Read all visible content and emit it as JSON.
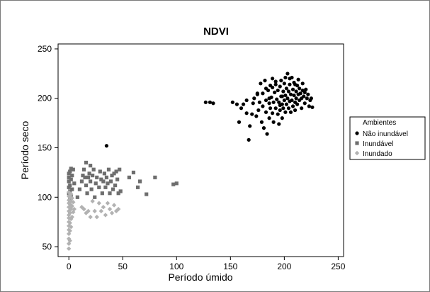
{
  "chart_data": {
    "type": "scatter",
    "title": "NDVI",
    "xlabel": "Período úmido",
    "ylabel": "Período seco",
    "xlim": [
      -10,
      255
    ],
    "ylim": [
      40,
      255
    ],
    "xticks": [
      0,
      50,
      100,
      150,
      200,
      250
    ],
    "yticks": [
      50,
      100,
      150,
      200,
      250
    ],
    "grid": false,
    "legend": {
      "title": "Ambientes",
      "placement": "right",
      "entries": [
        "Não inundável",
        "Inundável",
        "Inundado"
      ]
    },
    "series": [
      {
        "name": "Não inundável",
        "marker": "circle",
        "color": "#000000",
        "points": [
          [
            35,
            152
          ],
          [
            127,
            196
          ],
          [
            131,
            196
          ],
          [
            134,
            195
          ],
          [
            152,
            196
          ],
          [
            156,
            194
          ],
          [
            158,
            176
          ],
          [
            160,
            190
          ],
          [
            162,
            194
          ],
          [
            165,
            185
          ],
          [
            165,
            198
          ],
          [
            167,
            158
          ],
          [
            168,
            172
          ],
          [
            170,
            184
          ],
          [
            171,
            195
          ],
          [
            172,
            200
          ],
          [
            174,
            182
          ],
          [
            175,
            204
          ],
          [
            176,
            188
          ],
          [
            177,
            196
          ],
          [
            178,
            215
          ],
          [
            179,
            176
          ],
          [
            180,
            192
          ],
          [
            180,
            205
          ],
          [
            181,
            170
          ],
          [
            182,
            218
          ],
          [
            183,
            186
          ],
          [
            183,
            198
          ],
          [
            184,
            164
          ],
          [
            185,
            208
          ],
          [
            186,
            195
          ],
          [
            186,
            180
          ],
          [
            187,
            213
          ],
          [
            187,
            190
          ],
          [
            188,
            201
          ],
          [
            189,
            185
          ],
          [
            189,
            220
          ],
          [
            190,
            196
          ],
          [
            190,
            176
          ],
          [
            191,
            206
          ],
          [
            192,
            190
          ],
          [
            192,
            214
          ],
          [
            193,
            199
          ],
          [
            194,
            184
          ],
          [
            194,
            208
          ],
          [
            195,
            196
          ],
          [
            195,
            174
          ],
          [
            196,
            212
          ],
          [
            196,
            188
          ],
          [
            197,
            202
          ],
          [
            197,
            218
          ],
          [
            198,
            194
          ],
          [
            198,
            180
          ],
          [
            199,
            207
          ],
          [
            199,
            190
          ],
          [
            200,
            198
          ],
          [
            200,
            215
          ],
          [
            201,
            186
          ],
          [
            201,
            203
          ],
          [
            202,
            194
          ],
          [
            202,
            210
          ],
          [
            203,
            200
          ],
          [
            203,
            225
          ],
          [
            204,
            190
          ],
          [
            204,
            207
          ],
          [
            205,
            197
          ],
          [
            205,
            214
          ],
          [
            206,
            204
          ],
          [
            206,
            186
          ],
          [
            207,
            221
          ],
          [
            207,
            198
          ],
          [
            208,
            209
          ],
          [
            208,
            192
          ],
          [
            209,
            203
          ],
          [
            209,
            216
          ],
          [
            210,
            196
          ],
          [
            210,
            188
          ],
          [
            211,
            207
          ],
          [
            211,
            200
          ],
          [
            212,
            213
          ],
          [
            212,
            194
          ],
          [
            213,
            219
          ],
          [
            213,
            204
          ],
          [
            214,
            198
          ],
          [
            214,
            210
          ],
          [
            215,
            205
          ],
          [
            216,
            200
          ],
          [
            216,
            190
          ],
          [
            217,
            208
          ],
          [
            217,
            215
          ],
          [
            218,
            202
          ],
          [
            219,
            206
          ],
          [
            219,
            195
          ],
          [
            220,
            209
          ],
          [
            221,
            200
          ],
          [
            222,
            204
          ],
          [
            223,
            192
          ],
          [
            224,
            198
          ],
          [
            225,
            200
          ],
          [
            226,
            191
          ],
          [
            175,
            205
          ],
          [
            183,
            210
          ],
          [
            192,
            217
          ],
          [
            198,
            202
          ],
          [
            186,
            200
          ],
          [
            205,
            220
          ],
          [
            210,
            214
          ],
          [
            189,
            211
          ],
          [
            196,
            193
          ],
          [
            201,
            221
          ]
        ]
      },
      {
        "name": "Inundável",
        "marker": "square",
        "color": "#6e6e6e",
        "points": [
          [
            0,
            104
          ],
          [
            0,
            110
          ],
          [
            0,
            116
          ],
          [
            0,
            120
          ],
          [
            0,
            124
          ],
          [
            1,
            98
          ],
          [
            1,
            106
          ],
          [
            1,
            112
          ],
          [
            1,
            126
          ],
          [
            2,
            102
          ],
          [
            2,
            118
          ],
          [
            2,
            129
          ],
          [
            3,
            108
          ],
          [
            3,
            122
          ],
          [
            4,
            128
          ],
          [
            5,
            114
          ],
          [
            8,
            100
          ],
          [
            10,
            108
          ],
          [
            12,
            116
          ],
          [
            13,
            122
          ],
          [
            14,
            128
          ],
          [
            15,
            120
          ],
          [
            16,
            112
          ],
          [
            16,
            135
          ],
          [
            17,
            104
          ],
          [
            18,
            120
          ],
          [
            19,
            124
          ],
          [
            20,
            116
          ],
          [
            20,
            132
          ],
          [
            21,
            108
          ],
          [
            22,
            122
          ],
          [
            23,
            128
          ],
          [
            24,
            100
          ],
          [
            25,
            114
          ],
          [
            26,
            120
          ],
          [
            28,
            110
          ],
          [
            29,
            126
          ],
          [
            30,
            118
          ],
          [
            31,
            104
          ],
          [
            32,
            116
          ],
          [
            33,
            124
          ],
          [
            34,
            110
          ],
          [
            35,
            120
          ],
          [
            36,
            114
          ],
          [
            37,
            128
          ],
          [
            38,
            104
          ],
          [
            39,
            116
          ],
          [
            40,
            122
          ],
          [
            41,
            108
          ],
          [
            42,
            124
          ],
          [
            43,
            112
          ],
          [
            44,
            126
          ],
          [
            45,
            118
          ],
          [
            46,
            104
          ],
          [
            47,
            128
          ],
          [
            48,
            106
          ],
          [
            56,
            120
          ],
          [
            60,
            125
          ],
          [
            64,
            110
          ],
          [
            66,
            116
          ],
          [
            72,
            103
          ],
          [
            80,
            120
          ],
          [
            97,
            113
          ],
          [
            100,
            114
          ]
        ]
      },
      {
        "name": "Inundado",
        "marker": "diamond",
        "color": "#b2b2b2",
        "points": [
          [
            0,
            48
          ],
          [
            0,
            53
          ],
          [
            0,
            58
          ],
          [
            0,
            63
          ],
          [
            0,
            67
          ],
          [
            0,
            71
          ],
          [
            0,
            75
          ],
          [
            0,
            79
          ],
          [
            0,
            82
          ],
          [
            0,
            86
          ],
          [
            0,
            90
          ],
          [
            0,
            94
          ],
          [
            0,
            97
          ],
          [
            0,
            101
          ],
          [
            0,
            105
          ],
          [
            1,
            56
          ],
          [
            1,
            66
          ],
          [
            1,
            74
          ],
          [
            1,
            84
          ],
          [
            1,
            93
          ],
          [
            1,
            100
          ],
          [
            2,
            70
          ],
          [
            2,
            78
          ],
          [
            2,
            88
          ],
          [
            2,
            96
          ],
          [
            2,
            103
          ],
          [
            3,
            80
          ],
          [
            3,
            91
          ],
          [
            3,
            99
          ],
          [
            4,
            85
          ],
          [
            4,
            95
          ],
          [
            5,
            88
          ],
          [
            12,
            90
          ],
          [
            14,
            88
          ],
          [
            16,
            84
          ],
          [
            18,
            86
          ],
          [
            20,
            80
          ],
          [
            22,
            96
          ],
          [
            24,
            86
          ],
          [
            26,
            80
          ],
          [
            28,
            94
          ],
          [
            30,
            86
          ],
          [
            32,
            90
          ],
          [
            34,
            82
          ],
          [
            36,
            94
          ],
          [
            38,
            88
          ],
          [
            40,
            84
          ],
          [
            42,
            92
          ],
          [
            44,
            86
          ],
          [
            46,
            88
          ]
        ]
      }
    ]
  }
}
